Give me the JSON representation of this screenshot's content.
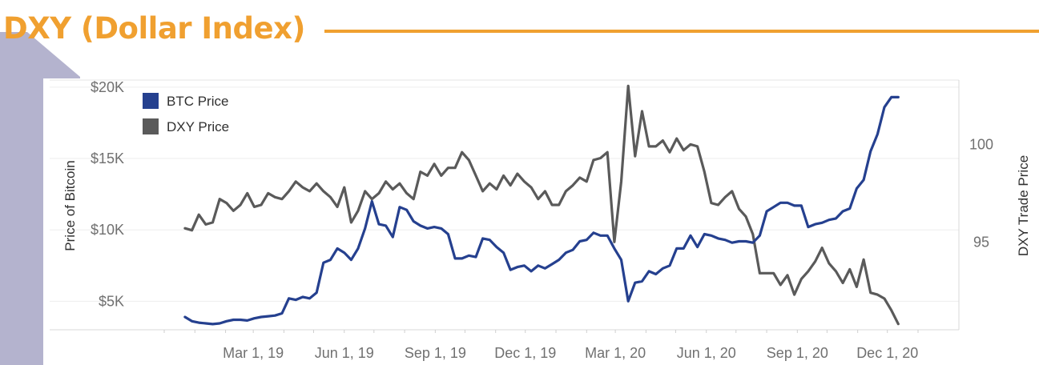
{
  "page": {
    "title": "DXY (Dollar Index)"
  },
  "colors": {
    "accent": "#F0A030",
    "btc": "#25408F",
    "dxy": "#5A5A5A",
    "deco": "#B4B3CE"
  },
  "chart_data": {
    "type": "line",
    "title": "DXY (Dollar Index)",
    "dual_axis": true,
    "x_label": "",
    "x_tick_labels": [
      "Mar 1, 19",
      "Jun 1, 19",
      "Sep 1, 19",
      "Dec 1, 19",
      "Mar 1, 20",
      "Jun 1, 20",
      "Sep 1, 20",
      "Dec 1, 20"
    ],
    "x_range": [
      "2018-12-01",
      "2020-12-15"
    ],
    "y_left": {
      "label": "Price of Bitcoin",
      "range": [
        3000,
        20500
      ],
      "ticks": [
        5000,
        10000,
        15000,
        20000
      ],
      "tick_labels": [
        "$5K",
        "$10K",
        "$15K",
        "$20K"
      ]
    },
    "y_right": {
      "label": "DXY Trade Price",
      "range": [
        90.5,
        103.3
      ],
      "ticks": [
        95,
        100
      ],
      "tick_labels": [
        "95",
        "100"
      ]
    },
    "legend": {
      "position": "top-left",
      "entries": [
        "BTC Price",
        "DXY Price"
      ]
    },
    "grid": {
      "horizontal": true,
      "vertical": false
    },
    "series": [
      {
        "name": "BTC Price",
        "axis": "left",
        "x": [
          "2018-12-22",
          "2018-12-29",
          "2019-01-05",
          "2019-01-12",
          "2019-01-19",
          "2019-01-26",
          "2019-02-02",
          "2019-02-09",
          "2019-02-16",
          "2019-02-23",
          "2019-03-02",
          "2019-03-09",
          "2019-03-16",
          "2019-03-23",
          "2019-03-30",
          "2019-04-06",
          "2019-04-13",
          "2019-04-20",
          "2019-04-27",
          "2019-05-04",
          "2019-05-11",
          "2019-05-18",
          "2019-05-25",
          "2019-06-01",
          "2019-06-08",
          "2019-06-15",
          "2019-06-22",
          "2019-06-29",
          "2019-07-06",
          "2019-07-13",
          "2019-07-20",
          "2019-07-27",
          "2019-08-03",
          "2019-08-10",
          "2019-08-17",
          "2019-08-24",
          "2019-08-31",
          "2019-09-07",
          "2019-09-14",
          "2019-09-21",
          "2019-09-28",
          "2019-10-05",
          "2019-10-12",
          "2019-10-19",
          "2019-10-26",
          "2019-11-02",
          "2019-11-09",
          "2019-11-16",
          "2019-11-23",
          "2019-11-30",
          "2019-12-07",
          "2019-12-14",
          "2019-12-21",
          "2019-12-28",
          "2020-01-04",
          "2020-01-11",
          "2020-01-18",
          "2020-01-25",
          "2020-02-01",
          "2020-02-08",
          "2020-02-15",
          "2020-02-22",
          "2020-02-29",
          "2020-03-07",
          "2020-03-14",
          "2020-03-21",
          "2020-03-28",
          "2020-04-04",
          "2020-04-11",
          "2020-04-18",
          "2020-04-25",
          "2020-05-02",
          "2020-05-09",
          "2020-05-16",
          "2020-05-23",
          "2020-05-30",
          "2020-06-06",
          "2020-06-13",
          "2020-06-20",
          "2020-06-27",
          "2020-07-04",
          "2020-07-11",
          "2020-07-18",
          "2020-07-25",
          "2020-08-01",
          "2020-08-08",
          "2020-08-15",
          "2020-08-22",
          "2020-08-29",
          "2020-09-05",
          "2020-09-12",
          "2020-09-19",
          "2020-09-26",
          "2020-10-03",
          "2020-10-10",
          "2020-10-17",
          "2020-10-24",
          "2020-10-31",
          "2020-11-07",
          "2020-11-14",
          "2020-11-21",
          "2020-11-28",
          "2020-12-05",
          "2020-12-12"
        ],
        "values": [
          3900,
          3600,
          3500,
          3450,
          3400,
          3450,
          3600,
          3700,
          3700,
          3650,
          3800,
          3900,
          3950,
          4000,
          4150,
          5200,
          5100,
          5300,
          5200,
          5600,
          7700,
          7900,
          8700,
          8400,
          7900,
          8700,
          10100,
          12000,
          10400,
          10300,
          9500,
          11600,
          11400,
          10600,
          10300,
          10100,
          10200,
          10100,
          9700,
          8000,
          8000,
          8200,
          8100,
          9400,
          9300,
          8800,
          8400,
          7200,
          7400,
          7500,
          7100,
          7500,
          7300,
          7600,
          7900,
          8400,
          8600,
          9200,
          9300,
          9800,
          9600,
          9600,
          8700,
          7900,
          5000,
          6300,
          6400,
          7100,
          6900,
          7300,
          7500,
          8700,
          8700,
          9600,
          8800,
          9700,
          9600,
          9400,
          9300,
          9100,
          9200,
          9200,
          9100,
          9600,
          11300,
          11600,
          11900,
          11900,
          11700,
          11700,
          10200,
          10400,
          10500,
          10700,
          10800,
          11300,
          11500,
          12900,
          13500,
          15500,
          16700,
          18600,
          19300,
          19300
        ]
      },
      {
        "name": "DXY Price",
        "axis": "right",
        "x": [
          "2018-12-22",
          "2018-12-29",
          "2019-01-05",
          "2019-01-12",
          "2019-01-19",
          "2019-01-26",
          "2019-02-02",
          "2019-02-09",
          "2019-02-16",
          "2019-02-23",
          "2019-03-02",
          "2019-03-09",
          "2019-03-16",
          "2019-03-23",
          "2019-03-30",
          "2019-04-06",
          "2019-04-13",
          "2019-04-20",
          "2019-04-27",
          "2019-05-04",
          "2019-05-11",
          "2019-05-18",
          "2019-05-25",
          "2019-06-01",
          "2019-06-08",
          "2019-06-15",
          "2019-06-22",
          "2019-06-29",
          "2019-07-06",
          "2019-07-13",
          "2019-07-20",
          "2019-07-27",
          "2019-08-03",
          "2019-08-10",
          "2019-08-17",
          "2019-08-24",
          "2019-08-31",
          "2019-09-07",
          "2019-09-14",
          "2019-09-21",
          "2019-09-28",
          "2019-10-05",
          "2019-10-12",
          "2019-10-19",
          "2019-10-26",
          "2019-11-02",
          "2019-11-09",
          "2019-11-16",
          "2019-11-23",
          "2019-11-30",
          "2019-12-07",
          "2019-12-14",
          "2019-12-21",
          "2019-12-28",
          "2020-01-04",
          "2020-01-11",
          "2020-01-18",
          "2020-01-25",
          "2020-02-01",
          "2020-02-08",
          "2020-02-15",
          "2020-02-22",
          "2020-02-29",
          "2020-03-07",
          "2020-03-14",
          "2020-03-21",
          "2020-03-28",
          "2020-04-04",
          "2020-04-11",
          "2020-04-18",
          "2020-04-25",
          "2020-05-02",
          "2020-05-09",
          "2020-05-16",
          "2020-05-23",
          "2020-05-30",
          "2020-06-06",
          "2020-06-13",
          "2020-06-20",
          "2020-06-27",
          "2020-07-04",
          "2020-07-11",
          "2020-07-18",
          "2020-07-25",
          "2020-08-01",
          "2020-08-08",
          "2020-08-15",
          "2020-08-22",
          "2020-08-29",
          "2020-09-05",
          "2020-09-12",
          "2020-09-19",
          "2020-09-26",
          "2020-10-03",
          "2020-10-10",
          "2020-10-17",
          "2020-10-24",
          "2020-10-31",
          "2020-11-07",
          "2020-11-14",
          "2020-11-21",
          "2020-11-28",
          "2020-12-05",
          "2020-12-12"
        ],
        "values": [
          95.7,
          95.6,
          96.4,
          95.9,
          96.0,
          97.2,
          97.0,
          96.6,
          96.9,
          97.5,
          96.8,
          96.9,
          97.5,
          97.3,
          97.2,
          97.6,
          98.1,
          97.8,
          97.6,
          98.0,
          97.6,
          97.3,
          96.8,
          97.8,
          96.0,
          96.6,
          97.6,
          97.2,
          97.5,
          98.1,
          97.7,
          98.0,
          97.5,
          97.2,
          98.6,
          98.4,
          99.0,
          98.4,
          98.8,
          98.8,
          99.6,
          99.2,
          98.4,
          97.6,
          98.0,
          97.7,
          98.4,
          97.9,
          98.5,
          98.1,
          97.8,
          97.2,
          97.6,
          96.9,
          96.9,
          97.6,
          97.9,
          98.3,
          98.1,
          99.2,
          99.3,
          99.6,
          95.0,
          98.1,
          103.0,
          99.4,
          101.7,
          99.9,
          99.9,
          100.2,
          99.6,
          100.3,
          99.7,
          100.0,
          99.9,
          98.6,
          97.0,
          96.9,
          97.3,
          97.6,
          96.7,
          96.3,
          95.4,
          93.4,
          93.4,
          93.4,
          92.8,
          93.3,
          92.3,
          93.1,
          93.5,
          94.0,
          94.7,
          93.9,
          93.5,
          92.9,
          93.6,
          92.7,
          94.1,
          92.4,
          92.3,
          92.1,
          91.5,
          90.8
        ]
      }
    ]
  }
}
